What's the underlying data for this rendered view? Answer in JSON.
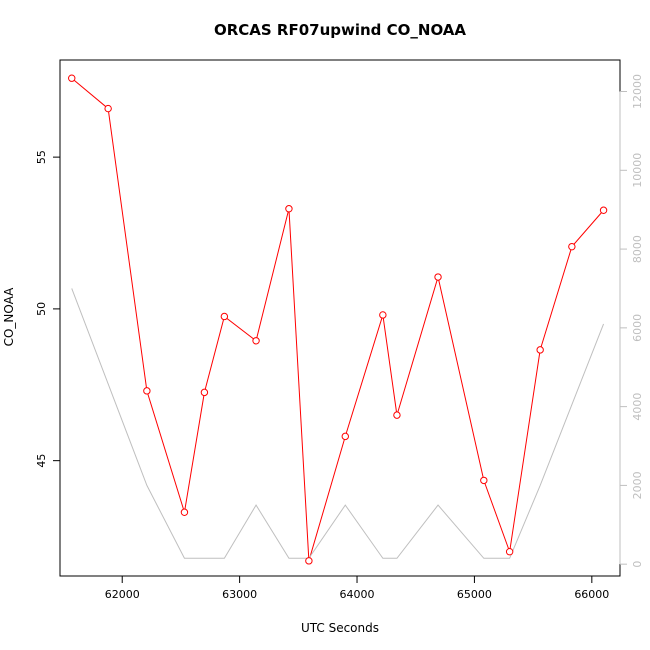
{
  "chart_data": {
    "type": "line",
    "title": "ORCAS RF07upwind CO_NOAA",
    "xlabel": "UTC Seconds",
    "ylabel": "CO_NOAA",
    "xlim": [
      61470,
      66240
    ],
    "ylim": [
      41.2,
      58.2
    ],
    "y2lim": [
      -300,
      12800
    ],
    "x_ticks": [
      62000,
      63000,
      64000,
      65000,
      66000
    ],
    "y_ticks": [
      45,
      50,
      55
    ],
    "y2_ticks": [
      0,
      2000,
      4000,
      6000,
      8000,
      10000,
      12000
    ],
    "grid": false,
    "series": [
      {
        "axis": "left",
        "color": "#ff0000",
        "marker": "open-circle",
        "x": [
          61570,
          61880,
          62210,
          62530,
          62700,
          62870,
          63140,
          63420,
          63590,
          63900,
          64220,
          64340,
          64690,
          65080,
          65300,
          65560,
          65830,
          66100
        ],
        "y": [
          57.6,
          56.6,
          47.3,
          43.3,
          47.25,
          49.75,
          48.95,
          53.3,
          41.7,
          45.8,
          49.8,
          46.5,
          51.05,
          44.35,
          42.0,
          48.65,
          52.05,
          53.25
        ]
      },
      {
        "axis": "right",
        "color": "#bfbfbf",
        "marker": "none",
        "x": [
          61570,
          62210,
          62530,
          62870,
          63140,
          63420,
          63590,
          63900,
          64220,
          64340,
          64690,
          65080,
          65300,
          65560,
          66100
        ],
        "y": [
          7000,
          2000,
          150,
          150,
          1500,
          150,
          150,
          1500,
          150,
          150,
          1500,
          150,
          150,
          2000,
          6100
        ]
      }
    ]
  }
}
